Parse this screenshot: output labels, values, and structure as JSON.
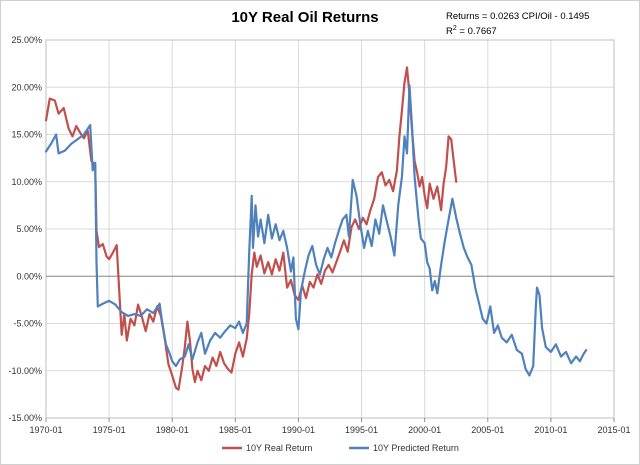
{
  "chart_data": {
    "type": "line",
    "title": "10Y Real Oil Returns",
    "annotation": {
      "equation": "Returns = 0.0263  CPI/Oil - 0.1495",
      "r2_label": "R",
      "r2_exp": "2",
      "r2_value": " = 0.7667"
    },
    "xlabel": "",
    "ylabel": "",
    "x_ticks": [
      "1970-01",
      "1975-01",
      "1980-01",
      "1985-01",
      "1990-01",
      "1995-01",
      "2000-01",
      "2005-01",
      "2010-01",
      "2015-01"
    ],
    "x_range": [
      1970.0,
      2015.0
    ],
    "y_ticks": [
      "25.00%",
      "20.00%",
      "15.00%",
      "10.00%",
      "5.00%",
      "0.00%",
      "-5.00%",
      "-10.00%",
      "-15.00%"
    ],
    "ylim": [
      -15,
      25
    ],
    "grid": true,
    "legend_placement": "bottom",
    "series": [
      {
        "name": "10Y Real Return",
        "color": "#c0504d",
        "points": [
          [
            1970.0,
            16.5
          ],
          [
            1970.3,
            18.8
          ],
          [
            1970.7,
            18.6
          ],
          [
            1971.0,
            17.2
          ],
          [
            1971.4,
            17.8
          ],
          [
            1971.8,
            15.6
          ],
          [
            1972.1,
            14.8
          ],
          [
            1972.4,
            15.9
          ],
          [
            1972.7,
            15.2
          ],
          [
            1973.0,
            14.6
          ],
          [
            1973.3,
            15.4
          ],
          [
            1973.6,
            12.2
          ],
          [
            1973.9,
            11.8
          ],
          [
            1974.0,
            4.8
          ],
          [
            1974.2,
            3.1
          ],
          [
            1974.5,
            3.4
          ],
          [
            1974.8,
            2.1
          ],
          [
            1975.0,
            1.8
          ],
          [
            1975.3,
            2.5
          ],
          [
            1975.6,
            3.3
          ],
          [
            1975.8,
            -1.5
          ],
          [
            1976.0,
            -6.2
          ],
          [
            1976.2,
            -4.0
          ],
          [
            1976.4,
            -6.8
          ],
          [
            1976.7,
            -4.5
          ],
          [
            1977.0,
            -5.2
          ],
          [
            1977.3,
            -3.0
          ],
          [
            1977.6,
            -4.3
          ],
          [
            1977.9,
            -5.8
          ],
          [
            1978.2,
            -4.0
          ],
          [
            1978.5,
            -4.8
          ],
          [
            1978.8,
            -3.2
          ],
          [
            1979.1,
            -4.2
          ],
          [
            1979.4,
            -6.5
          ],
          [
            1979.7,
            -9.3
          ],
          [
            1980.0,
            -10.5
          ],
          [
            1980.3,
            -11.8
          ],
          [
            1980.5,
            -12.0
          ],
          [
            1980.8,
            -9.5
          ],
          [
            1981.0,
            -7.5
          ],
          [
            1981.2,
            -4.8
          ],
          [
            1981.4,
            -6.8
          ],
          [
            1981.6,
            -9.8
          ],
          [
            1981.8,
            -11.2
          ],
          [
            1982.0,
            -10.0
          ],
          [
            1982.3,
            -11.0
          ],
          [
            1982.6,
            -9.5
          ],
          [
            1982.9,
            -10.0
          ],
          [
            1983.2,
            -8.6
          ],
          [
            1983.5,
            -9.5
          ],
          [
            1983.8,
            -8.0
          ],
          [
            1984.1,
            -9.2
          ],
          [
            1984.4,
            -9.8
          ],
          [
            1984.7,
            -10.2
          ],
          [
            1985.0,
            -8.2
          ],
          [
            1985.3,
            -7.0
          ],
          [
            1985.6,
            -8.5
          ],
          [
            1985.9,
            -6.6
          ],
          [
            1986.1,
            -4.0
          ],
          [
            1986.3,
            0.2
          ],
          [
            1986.5,
            2.5
          ],
          [
            1986.7,
            1.0
          ],
          [
            1987.0,
            2.2
          ],
          [
            1987.3,
            0.3
          ],
          [
            1987.6,
            1.5
          ],
          [
            1987.9,
            0.2
          ],
          [
            1988.2,
            1.8
          ],
          [
            1988.5,
            0.6
          ],
          [
            1988.8,
            2.5
          ],
          [
            1989.1,
            -1.2
          ],
          [
            1989.4,
            -0.4
          ],
          [
            1989.7,
            -2.0
          ],
          [
            1990.0,
            -2.5
          ],
          [
            1990.3,
            -1.0
          ],
          [
            1990.6,
            -2.3
          ],
          [
            1990.9,
            -0.6
          ],
          [
            1991.2,
            -1.2
          ],
          [
            1991.5,
            0.2
          ],
          [
            1991.8,
            -0.8
          ],
          [
            1992.1,
            0.6
          ],
          [
            1992.4,
            1.2
          ],
          [
            1992.7,
            0.4
          ],
          [
            1993.0,
            1.5
          ],
          [
            1993.3,
            2.6
          ],
          [
            1993.6,
            3.8
          ],
          [
            1993.9,
            2.6
          ],
          [
            1994.2,
            5.2
          ],
          [
            1994.5,
            6.0
          ],
          [
            1994.8,
            5.0
          ],
          [
            1995.1,
            6.2
          ],
          [
            1995.4,
            5.5
          ],
          [
            1995.7,
            7.0
          ],
          [
            1996.0,
            8.2
          ],
          [
            1996.3,
            10.5
          ],
          [
            1996.6,
            11.0
          ],
          [
            1996.9,
            9.6
          ],
          [
            1997.2,
            10.2
          ],
          [
            1997.5,
            9.0
          ],
          [
            1997.8,
            11.2
          ],
          [
            1998.0,
            14.8
          ],
          [
            1998.2,
            17.5
          ],
          [
            1998.4,
            20.5
          ],
          [
            1998.6,
            22.1
          ],
          [
            1998.8,
            19.2
          ],
          [
            1999.0,
            15.5
          ],
          [
            1999.2,
            12.2
          ],
          [
            1999.4,
            11.0
          ],
          [
            1999.6,
            9.5
          ],
          [
            1999.8,
            10.5
          ],
          [
            2000.0,
            8.5
          ],
          [
            2000.2,
            7.2
          ],
          [
            2000.4,
            9.8
          ],
          [
            2000.7,
            8.2
          ],
          [
            2001.0,
            9.5
          ],
          [
            2001.3,
            7.0
          ],
          [
            2001.5,
            9.8
          ],
          [
            2001.7,
            11.5
          ],
          [
            2001.9,
            14.8
          ],
          [
            2002.1,
            14.5
          ],
          [
            2002.3,
            12.2
          ],
          [
            2002.5,
            10.0
          ]
        ]
      },
      {
        "name": "10Y Predicted Return",
        "color": "#4f81bd",
        "points": [
          [
            1970.0,
            13.2
          ],
          [
            1970.4,
            14.0
          ],
          [
            1970.8,
            15.0
          ],
          [
            1971.0,
            13.0
          ],
          [
            1971.5,
            13.3
          ],
          [
            1972.0,
            14.0
          ],
          [
            1972.5,
            14.5
          ],
          [
            1973.0,
            15.0
          ],
          [
            1973.5,
            16.0
          ],
          [
            1973.7,
            11.2
          ],
          [
            1973.9,
            12.0
          ],
          [
            1974.0,
            1.5
          ],
          [
            1974.1,
            -3.2
          ],
          [
            1974.5,
            -2.9
          ],
          [
            1975.0,
            -2.6
          ],
          [
            1975.5,
            -3.0
          ],
          [
            1976.0,
            -3.8
          ],
          [
            1976.5,
            -4.2
          ],
          [
            1977.0,
            -4.0
          ],
          [
            1977.5,
            -4.2
          ],
          [
            1978.0,
            -3.5
          ],
          [
            1978.5,
            -3.9
          ],
          [
            1979.0,
            -2.9
          ],
          [
            1979.2,
            -4.8
          ],
          [
            1979.5,
            -7.2
          ],
          [
            1979.8,
            -8.2
          ],
          [
            1980.0,
            -9.0
          ],
          [
            1980.3,
            -9.5
          ],
          [
            1980.6,
            -8.8
          ],
          [
            1981.0,
            -8.5
          ],
          [
            1981.3,
            -7.2
          ],
          [
            1981.6,
            -8.8
          ],
          [
            1982.0,
            -7.0
          ],
          [
            1982.3,
            -6.0
          ],
          [
            1982.6,
            -8.2
          ],
          [
            1983.0,
            -6.8
          ],
          [
            1983.4,
            -6.0
          ],
          [
            1983.8,
            -6.5
          ],
          [
            1984.2,
            -5.8
          ],
          [
            1984.6,
            -5.2
          ],
          [
            1985.0,
            -5.5
          ],
          [
            1985.3,
            -4.8
          ],
          [
            1985.6,
            -6.0
          ],
          [
            1985.9,
            -5.0
          ],
          [
            1986.1,
            2.5
          ],
          [
            1986.3,
            8.5
          ],
          [
            1986.4,
            3.0
          ],
          [
            1986.6,
            7.5
          ],
          [
            1986.8,
            4.2
          ],
          [
            1987.0,
            6.0
          ],
          [
            1987.3,
            3.5
          ],
          [
            1987.6,
            6.5
          ],
          [
            1987.9,
            4.0
          ],
          [
            1988.2,
            5.5
          ],
          [
            1988.5,
            3.8
          ],
          [
            1988.8,
            4.8
          ],
          [
            1989.1,
            3.0
          ],
          [
            1989.4,
            0.5
          ],
          [
            1989.6,
            2.0
          ],
          [
            1989.8,
            -4.5
          ],
          [
            1990.0,
            -5.6
          ],
          [
            1990.2,
            -1.5
          ],
          [
            1990.5,
            0.5
          ],
          [
            1990.8,
            2.2
          ],
          [
            1991.1,
            3.2
          ],
          [
            1991.4,
            1.2
          ],
          [
            1991.7,
            0.2
          ],
          [
            1992.0,
            1.8
          ],
          [
            1992.3,
            3.0
          ],
          [
            1992.6,
            2.0
          ],
          [
            1992.9,
            3.5
          ],
          [
            1993.2,
            4.8
          ],
          [
            1993.5,
            6.0
          ],
          [
            1993.8,
            6.5
          ],
          [
            1994.0,
            4.2
          ],
          [
            1994.3,
            10.2
          ],
          [
            1994.6,
            8.5
          ],
          [
            1994.9,
            5.5
          ],
          [
            1995.2,
            3.0
          ],
          [
            1995.5,
            4.8
          ],
          [
            1995.8,
            3.2
          ],
          [
            1996.1,
            6.0
          ],
          [
            1996.4,
            4.5
          ],
          [
            1996.7,
            7.5
          ],
          [
            1997.0,
            5.8
          ],
          [
            1997.3,
            4.2
          ],
          [
            1997.6,
            2.2
          ],
          [
            1997.9,
            7.5
          ],
          [
            1998.2,
            10.5
          ],
          [
            1998.4,
            14.8
          ],
          [
            1998.6,
            13.0
          ],
          [
            1998.8,
            20.2
          ],
          [
            1999.0,
            15.8
          ],
          [
            1999.2,
            10.5
          ],
          [
            1999.5,
            6.2
          ],
          [
            1999.7,
            4.0
          ],
          [
            2000.0,
            3.5
          ],
          [
            2000.2,
            1.5
          ],
          [
            2000.4,
            0.8
          ],
          [
            2000.6,
            -1.5
          ],
          [
            2000.8,
            -0.5
          ],
          [
            2001.0,
            -1.8
          ],
          [
            2001.3,
            1.2
          ],
          [
            2001.6,
            3.8
          ],
          [
            2001.9,
            6.0
          ],
          [
            2002.2,
            8.2
          ],
          [
            2002.5,
            6.2
          ],
          [
            2002.8,
            4.5
          ],
          [
            2003.1,
            3.0
          ],
          [
            2003.4,
            2.0
          ],
          [
            2003.7,
            1.2
          ],
          [
            2004.0,
            -1.2
          ],
          [
            2004.3,
            -2.8
          ],
          [
            2004.6,
            -4.5
          ],
          [
            2004.9,
            -5.0
          ],
          [
            2005.2,
            -3.2
          ],
          [
            2005.5,
            -6.0
          ],
          [
            2005.8,
            -5.2
          ],
          [
            2006.1,
            -6.5
          ],
          [
            2006.5,
            -7.0
          ],
          [
            2006.9,
            -6.2
          ],
          [
            2007.3,
            -7.8
          ],
          [
            2007.7,
            -8.2
          ],
          [
            2008.0,
            -9.8
          ],
          [
            2008.3,
            -10.5
          ],
          [
            2008.6,
            -9.5
          ],
          [
            2008.8,
            -3.5
          ],
          [
            2008.9,
            -1.2
          ],
          [
            2009.1,
            -2.0
          ],
          [
            2009.3,
            -5.5
          ],
          [
            2009.6,
            -7.5
          ],
          [
            2010.0,
            -8.0
          ],
          [
            2010.4,
            -7.2
          ],
          [
            2010.8,
            -8.5
          ],
          [
            2011.2,
            -8.0
          ],
          [
            2011.6,
            -9.2
          ],
          [
            2012.0,
            -8.5
          ],
          [
            2012.3,
            -9.0
          ],
          [
            2012.6,
            -8.2
          ],
          [
            2012.8,
            -7.8
          ]
        ]
      }
    ]
  },
  "style": {
    "background": "#ffffff",
    "gridline": "#d9d9d9",
    "axis": "#8c8c8c",
    "border": "#bfbfbf"
  }
}
